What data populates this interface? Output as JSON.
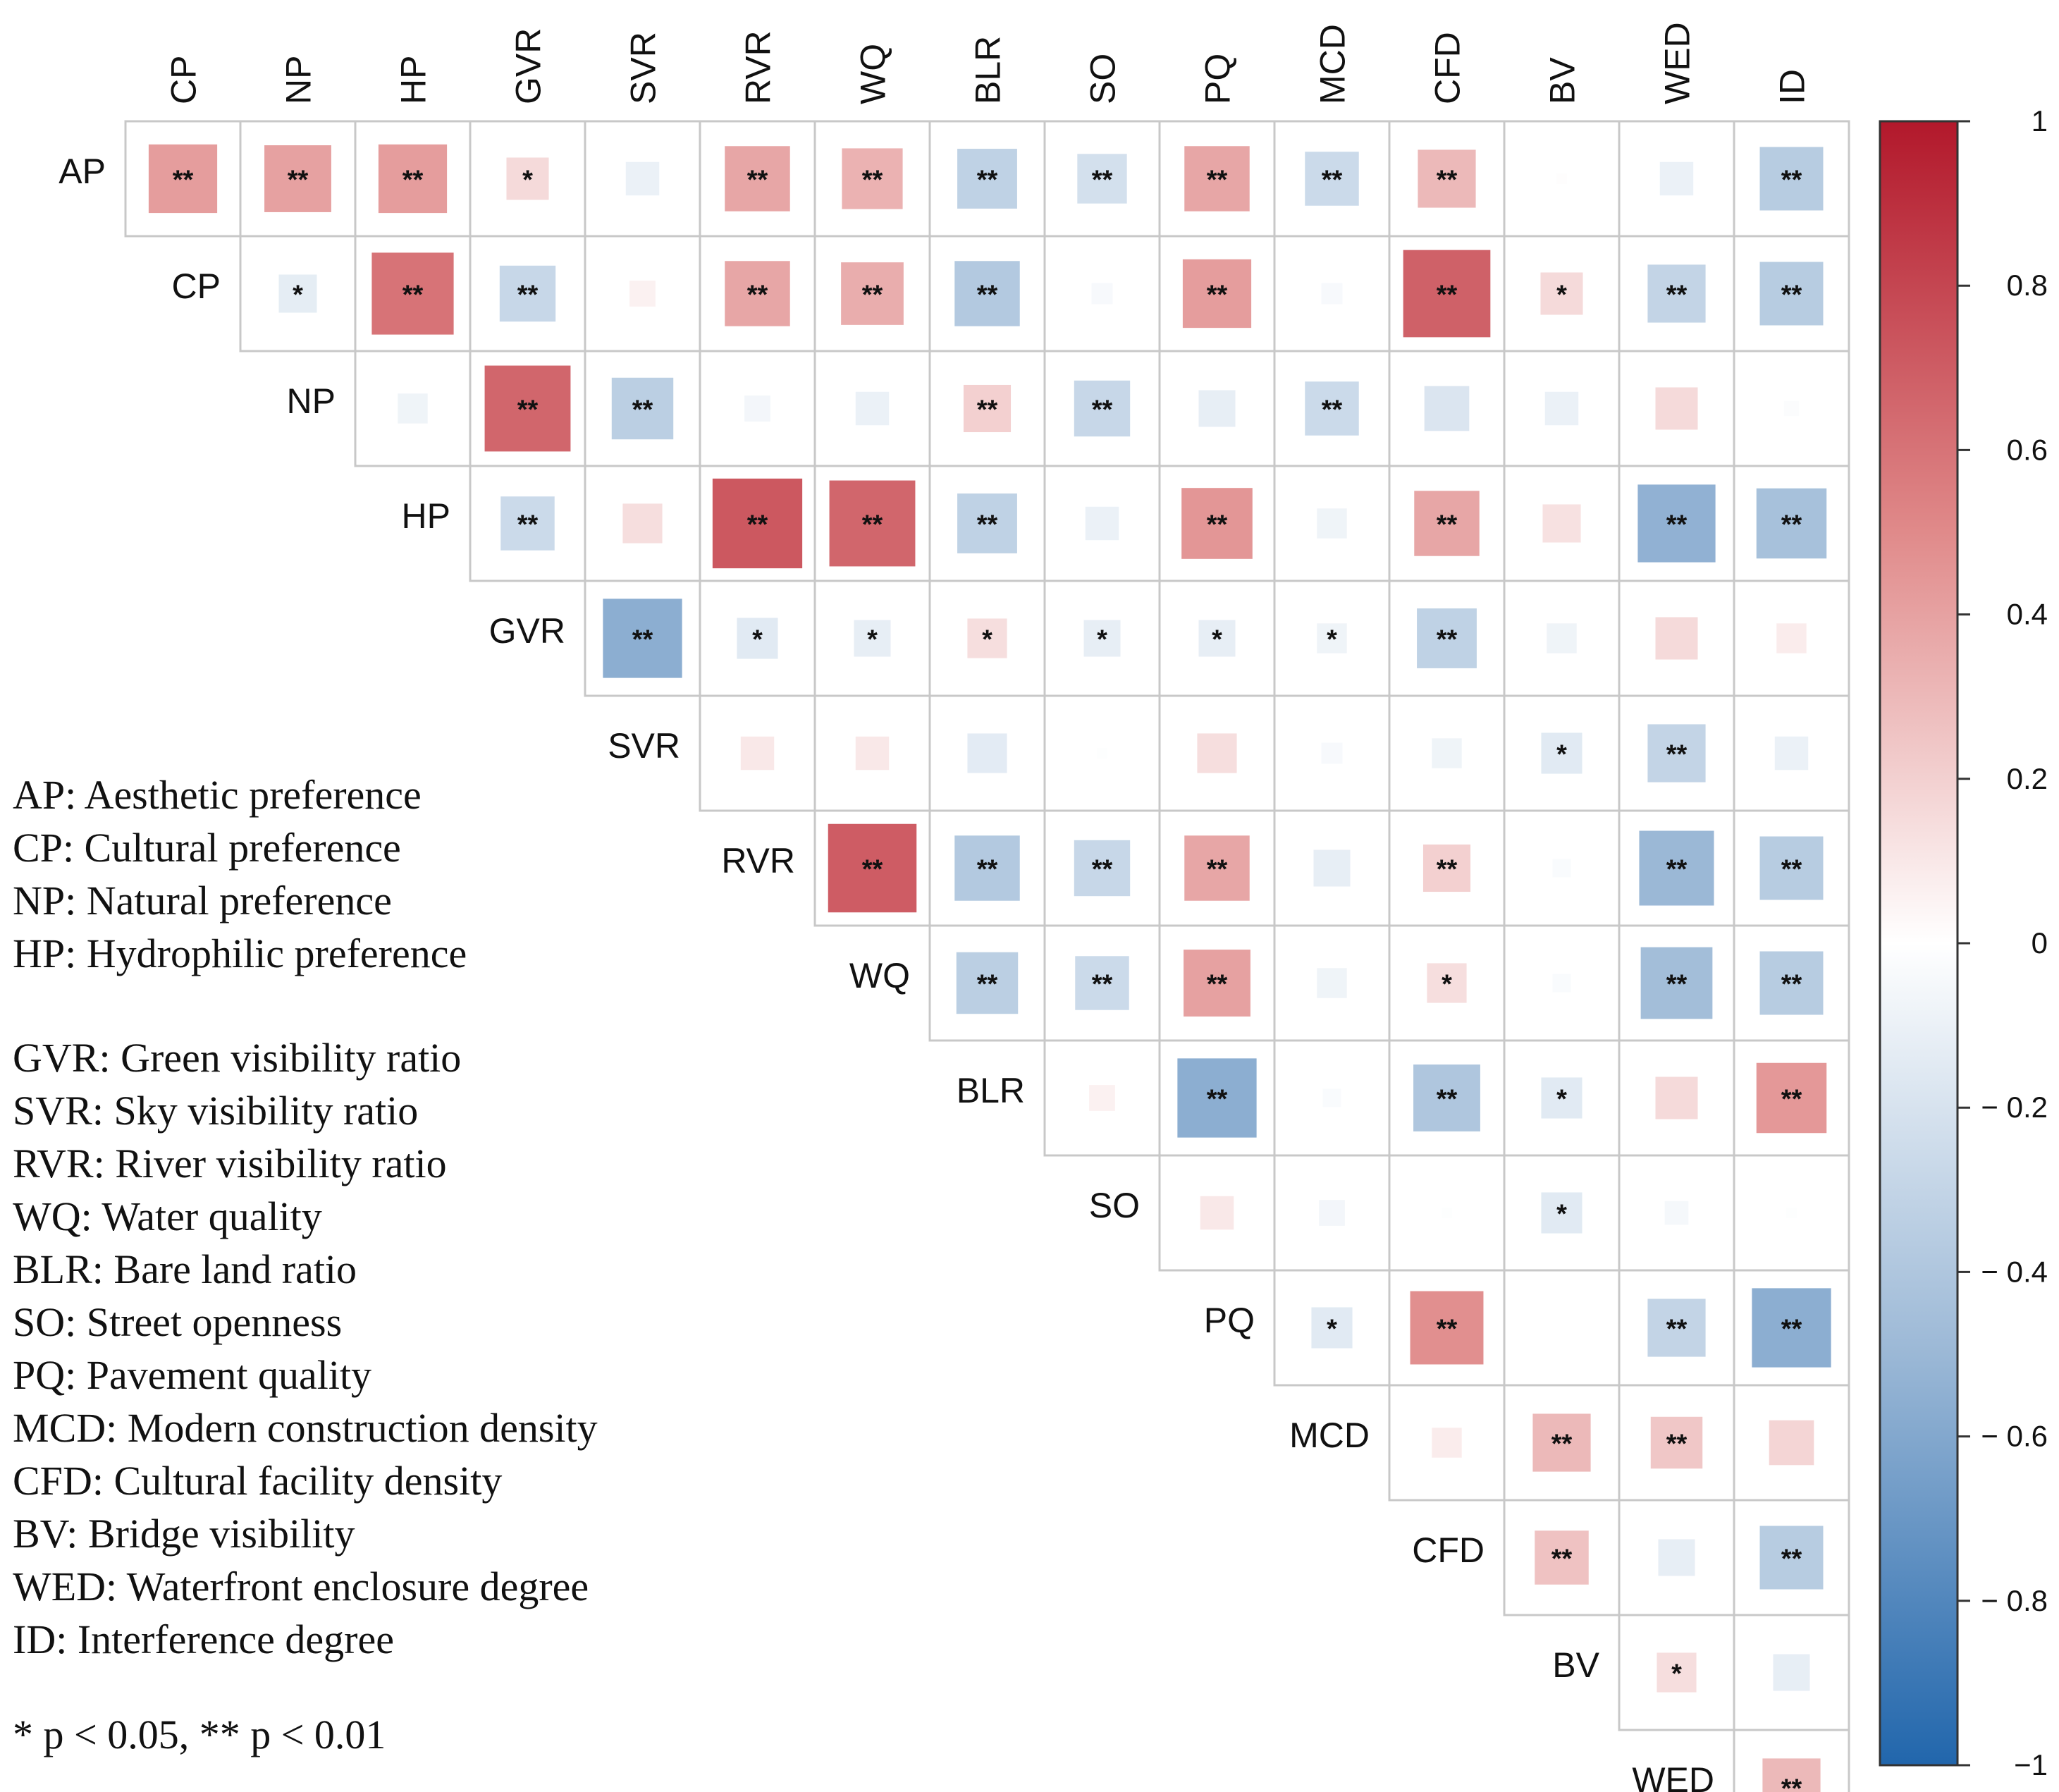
{
  "chart_data": {
    "type": "heatmap",
    "title": "",
    "colorscale": {
      "low": "#2166ac",
      "mid": "#ffffff",
      "high": "#b2182b",
      "range": [
        -1,
        1
      ],
      "ticks": [
        {
          "value": 1,
          "label": "1"
        },
        {
          "value": 0.8,
          "label": "0.8"
        },
        {
          "value": 0.6,
          "label": "0.6"
        },
        {
          "value": 0.4,
          "label": "0.4"
        },
        {
          "value": 0.2,
          "label": "0.2"
        },
        {
          "value": 0,
          "label": "0"
        },
        {
          "value": -0.2,
          "label": "− 0.2"
        },
        {
          "value": -0.4,
          "label": "− 0.4"
        },
        {
          "value": -0.6,
          "label": "− 0.6"
        },
        {
          "value": -0.8,
          "label": "− 0.8"
        },
        {
          "value": -1,
          "label": "−1"
        }
      ]
    },
    "row_labels": [
      "AP",
      "CP",
      "NP",
      "HP",
      "GVR",
      "SVR",
      "RVR",
      "WQ",
      "BLR",
      "SO",
      "PQ",
      "MCD",
      "CFD",
      "BV",
      "WED"
    ],
    "col_labels": [
      "CP",
      "NP",
      "HP",
      "GVR",
      "SVR",
      "RVR",
      "WQ",
      "BLR",
      "SO",
      "PQ",
      "MCD",
      "CFD",
      "BV",
      "WED",
      "ID"
    ],
    "matrix": [
      [
        [
          0.42,
          "**"
        ],
        [
          0.4,
          "**"
        ],
        [
          0.42,
          "**"
        ],
        [
          0.16,
          "*"
        ],
        [
          -0.1,
          ""
        ],
        [
          0.38,
          "**"
        ],
        [
          0.33,
          "**"
        ],
        [
          -0.32,
          "**"
        ],
        [
          -0.22,
          "**"
        ],
        [
          0.38,
          "**"
        ],
        [
          -0.26,
          "**"
        ],
        [
          0.3,
          "**"
        ],
        [
          0.01,
          ""
        ],
        [
          -0.1,
          ""
        ],
        [
          -0.36,
          "**"
        ]
      ],
      [
        null,
        [
          -0.13,
          "*"
        ],
        [
          0.6,
          "**"
        ],
        [
          -0.28,
          "**"
        ],
        [
          0.06,
          ""
        ],
        [
          0.38,
          "**"
        ],
        [
          0.35,
          "**"
        ],
        [
          -0.38,
          "**"
        ],
        [
          -0.04,
          ""
        ],
        [
          0.42,
          "**"
        ],
        [
          -0.04,
          ""
        ],
        [
          0.68,
          "**"
        ],
        [
          0.16,
          "*"
        ],
        [
          -0.3,
          "**"
        ],
        [
          -0.36,
          "**"
        ]
      ],
      [
        null,
        null,
        [
          -0.08,
          ""
        ],
        [
          0.66,
          "**"
        ],
        [
          -0.34,
          "**"
        ],
        [
          -0.06,
          ""
        ],
        [
          -0.1,
          ""
        ],
        [
          0.2,
          "**"
        ],
        [
          -0.28,
          "**"
        ],
        [
          -0.12,
          ""
        ],
        [
          -0.26,
          "**"
        ],
        [
          -0.18,
          ""
        ],
        [
          -0.1,
          ""
        ],
        [
          0.16,
          ""
        ],
        [
          -0.02,
          ""
        ]
      ],
      [
        null,
        null,
        null,
        [
          -0.26,
          "**"
        ],
        [
          0.14,
          ""
        ],
        [
          0.72,
          "**"
        ],
        [
          0.66,
          "**"
        ],
        [
          -0.32,
          "**"
        ],
        [
          -0.1,
          ""
        ],
        [
          0.45,
          "**"
        ],
        [
          -0.08,
          ""
        ],
        [
          0.38,
          "**"
        ],
        [
          0.13,
          ""
        ],
        [
          -0.54,
          "**"
        ],
        [
          -0.44,
          "**"
        ]
      ],
      [
        null,
        null,
        null,
        null,
        [
          -0.56,
          "**"
        ],
        [
          -0.15,
          "*"
        ],
        [
          -0.12,
          "*"
        ],
        [
          0.14,
          "*"
        ],
        [
          -0.12,
          "*"
        ],
        [
          -0.12,
          "*"
        ],
        [
          -0.08,
          "*"
        ],
        [
          -0.32,
          "**"
        ],
        [
          -0.08,
          ""
        ],
        [
          0.16,
          ""
        ],
        [
          0.08,
          ""
        ]
      ],
      [
        null,
        null,
        null,
        null,
        null,
        [
          0.1,
          ""
        ],
        [
          0.1,
          ""
        ],
        [
          -0.14,
          ""
        ],
        [
          -0.01,
          ""
        ],
        [
          0.14,
          ""
        ],
        [
          -0.04,
          ""
        ],
        [
          -0.08,
          ""
        ],
        [
          -0.15,
          "*"
        ],
        [
          -0.3,
          "**"
        ],
        [
          -0.1,
          ""
        ]
      ],
      [
        null,
        null,
        null,
        null,
        null,
        null,
        [
          0.7,
          "**"
        ],
        [
          -0.38,
          "**"
        ],
        [
          -0.28,
          "**"
        ],
        [
          0.38,
          "**"
        ],
        [
          -0.12,
          ""
        ],
        [
          0.2,
          "**"
        ],
        [
          -0.03,
          ""
        ],
        [
          -0.5,
          "**"
        ],
        [
          -0.36,
          "**"
        ]
      ],
      [
        null,
        null,
        null,
        null,
        null,
        null,
        null,
        [
          -0.34,
          "**"
        ],
        [
          -0.26,
          "**"
        ],
        [
          0.4,
          "**"
        ],
        [
          -0.08,
          ""
        ],
        [
          0.14,
          "*"
        ],
        [
          -0.03,
          ""
        ],
        [
          -0.46,
          "**"
        ],
        [
          -0.36,
          "**"
        ]
      ],
      [
        null,
        null,
        null,
        null,
        null,
        null,
        null,
        null,
        [
          0.06,
          ""
        ],
        [
          -0.56,
          "**"
        ],
        [
          -0.03,
          ""
        ],
        [
          -0.4,
          "**"
        ],
        [
          -0.15,
          "*"
        ],
        [
          0.16,
          ""
        ],
        [
          0.44,
          "**"
        ]
      ],
      [
        null,
        null,
        null,
        null,
        null,
        null,
        null,
        null,
        null,
        [
          0.1,
          ""
        ],
        [
          -0.06,
          ""
        ],
        [
          -0.01,
          ""
        ],
        [
          -0.15,
          "*"
        ],
        [
          -0.05,
          ""
        ],
        [
          -0.01,
          ""
        ]
      ],
      [
        null,
        null,
        null,
        null,
        null,
        null,
        null,
        null,
        null,
        null,
        [
          -0.15,
          "*"
        ],
        [
          0.48,
          "**"
        ],
        [
          0.0,
          ""
        ],
        [
          -0.3,
          "**"
        ],
        [
          -0.56,
          "**"
        ]
      ],
      [
        null,
        null,
        null,
        null,
        null,
        null,
        null,
        null,
        null,
        null,
        null,
        [
          0.08,
          ""
        ],
        [
          0.3,
          "**"
        ],
        [
          0.24,
          "**"
        ],
        [
          0.18,
          ""
        ]
      ],
      [
        null,
        null,
        null,
        null,
        null,
        null,
        null,
        null,
        null,
        null,
        null,
        null,
        [
          0.26,
          "**"
        ],
        [
          -0.12,
          ""
        ],
        [
          -0.36,
          "**"
        ]
      ],
      [
        null,
        null,
        null,
        null,
        null,
        null,
        null,
        null,
        null,
        null,
        null,
        null,
        null,
        [
          0.14,
          "*"
        ],
        [
          -0.12,
          ""
        ]
      ],
      [
        null,
        null,
        null,
        null,
        null,
        null,
        null,
        null,
        null,
        null,
        null,
        null,
        null,
        null,
        [
          0.3,
          "**"
        ]
      ]
    ]
  },
  "legend": {
    "group1": [
      "AP: Aesthetic preference",
      "CP: Cultural preference",
      "NP: Natural preference",
      "HP: Hydrophilic preference"
    ],
    "group2": [
      "GVR: Green visibility ratio",
      "SVR: Sky visibility ratio",
      "RVR: River visibility ratio",
      "WQ: Water quality",
      "BLR: Bare land ratio",
      "SO: Street openness",
      "PQ: Pavement quality",
      "MCD: Modern construction density",
      "CFD: Cultural facility density",
      "BV: Bridge visibility",
      "WED: Waterfront enclosure degree",
      "ID: Interference degree"
    ],
    "significance_note": "* p < 0.05, ** p < 0.01"
  }
}
